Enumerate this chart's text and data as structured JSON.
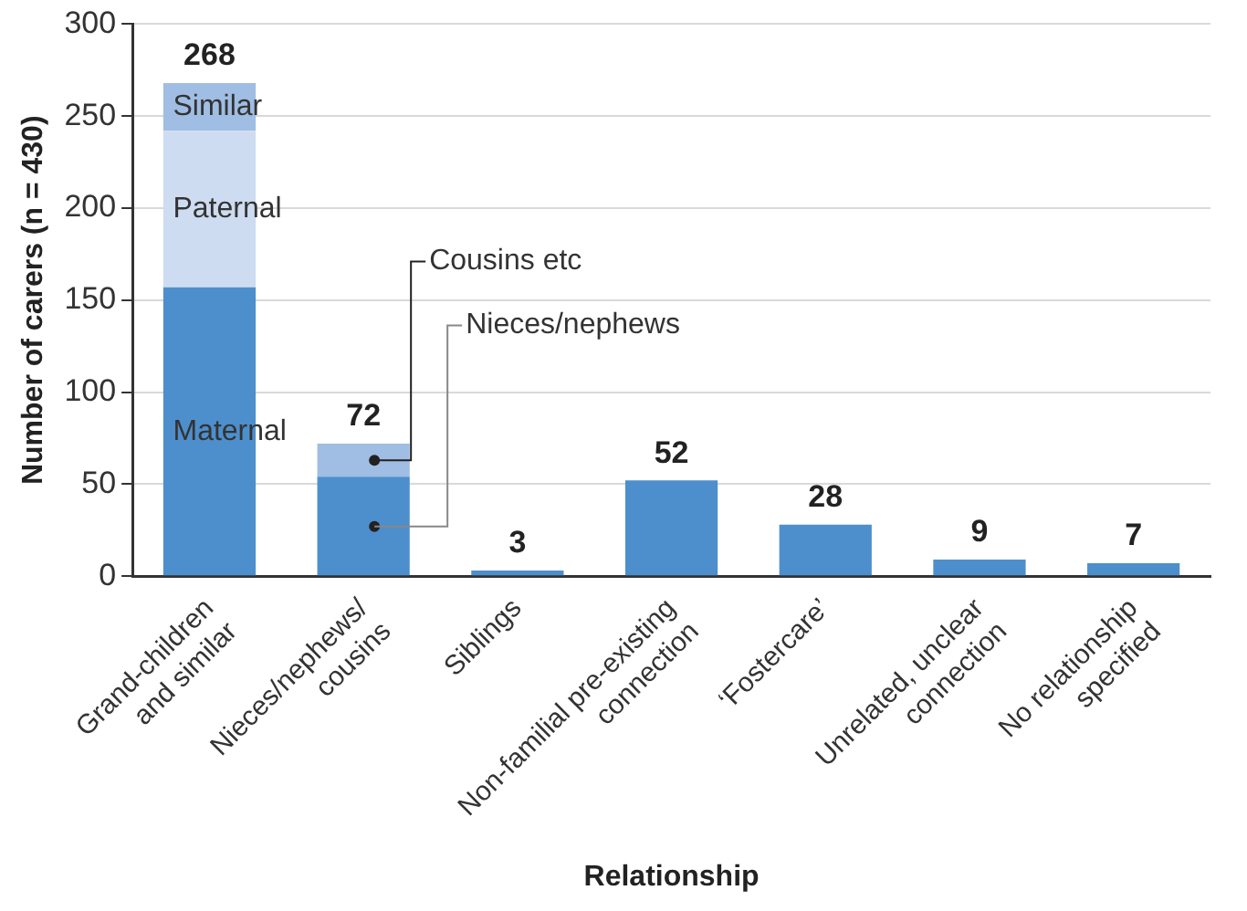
{
  "chart_data": {
    "type": "bar",
    "stacked": true,
    "xlabel": "Relationship",
    "ylabel": "Number of carers (n = 430)",
    "categories": [
      "Grand-children\nand similar",
      "Nieces/nephews/\ncousins",
      "Siblings",
      "Non-familial pre-existing\nconnection",
      "‘Fostercare’",
      "Unrelated, unclear\nconnection",
      "No relationship\nspecified"
    ],
    "series": [
      {
        "color": "#4d8fcc",
        "values": [
          157,
          54,
          3,
          52,
          28,
          9,
          7
        ]
      },
      {
        "color": "#cddcf0",
        "values": [
          85,
          null,
          null,
          null,
          null,
          null,
          null
        ]
      },
      {
        "color": "#a0bde3",
        "values": [
          26,
          18,
          null,
          null,
          null,
          null,
          null
        ]
      }
    ],
    "totals": [
      "268",
      "72",
      "3",
      "52",
      "28",
      "9",
      "7"
    ],
    "annotations": [
      "Similar",
      "Paternal",
      "Maternal",
      "Cousins etc",
      "Nieces/nephews"
    ],
    "ylim": [
      0,
      300
    ],
    "yticks": [
      0,
      50,
      100,
      150,
      200,
      250,
      300
    ],
    "grid": "y"
  }
}
